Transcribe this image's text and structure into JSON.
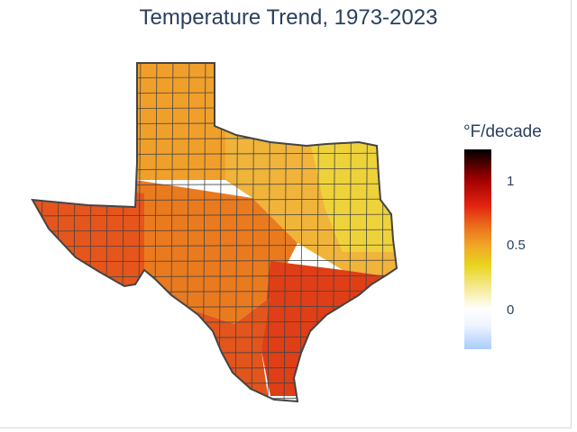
{
  "title": "Temperature Trend, 1973-2023",
  "colorbar": {
    "title": "°F/decade",
    "ticks": [
      {
        "label": "1",
        "value": 1.0
      },
      {
        "label": "0.5",
        "value": 0.5
      },
      {
        "label": "0",
        "value": 0.0
      }
    ],
    "range": [
      -0.3,
      1.25
    ],
    "colorscale": [
      [
        0.0,
        "#a9ccfb"
      ],
      [
        0.12,
        "#eef4ff"
      ],
      [
        0.2,
        "#ffffff"
      ],
      [
        0.3,
        "#f6eb9b"
      ],
      [
        0.42,
        "#e8d51f"
      ],
      [
        0.52,
        "#f1a526"
      ],
      [
        0.62,
        "#ea6b1a"
      ],
      [
        0.72,
        "#e3220f"
      ],
      [
        0.85,
        "#a00000"
      ],
      [
        1.0,
        "#000000"
      ]
    ]
  },
  "map": {
    "region": "Texas",
    "unit": "county",
    "fill_colors": {
      "panhandle": "#f0a02a",
      "central": "#ea7a1e",
      "east": "#f0b43a",
      "northeast": "#eed23a",
      "west": "#e5551c",
      "south": "#e2551c",
      "gulf": "#df3e16"
    },
    "border_color": "#444444"
  }
}
